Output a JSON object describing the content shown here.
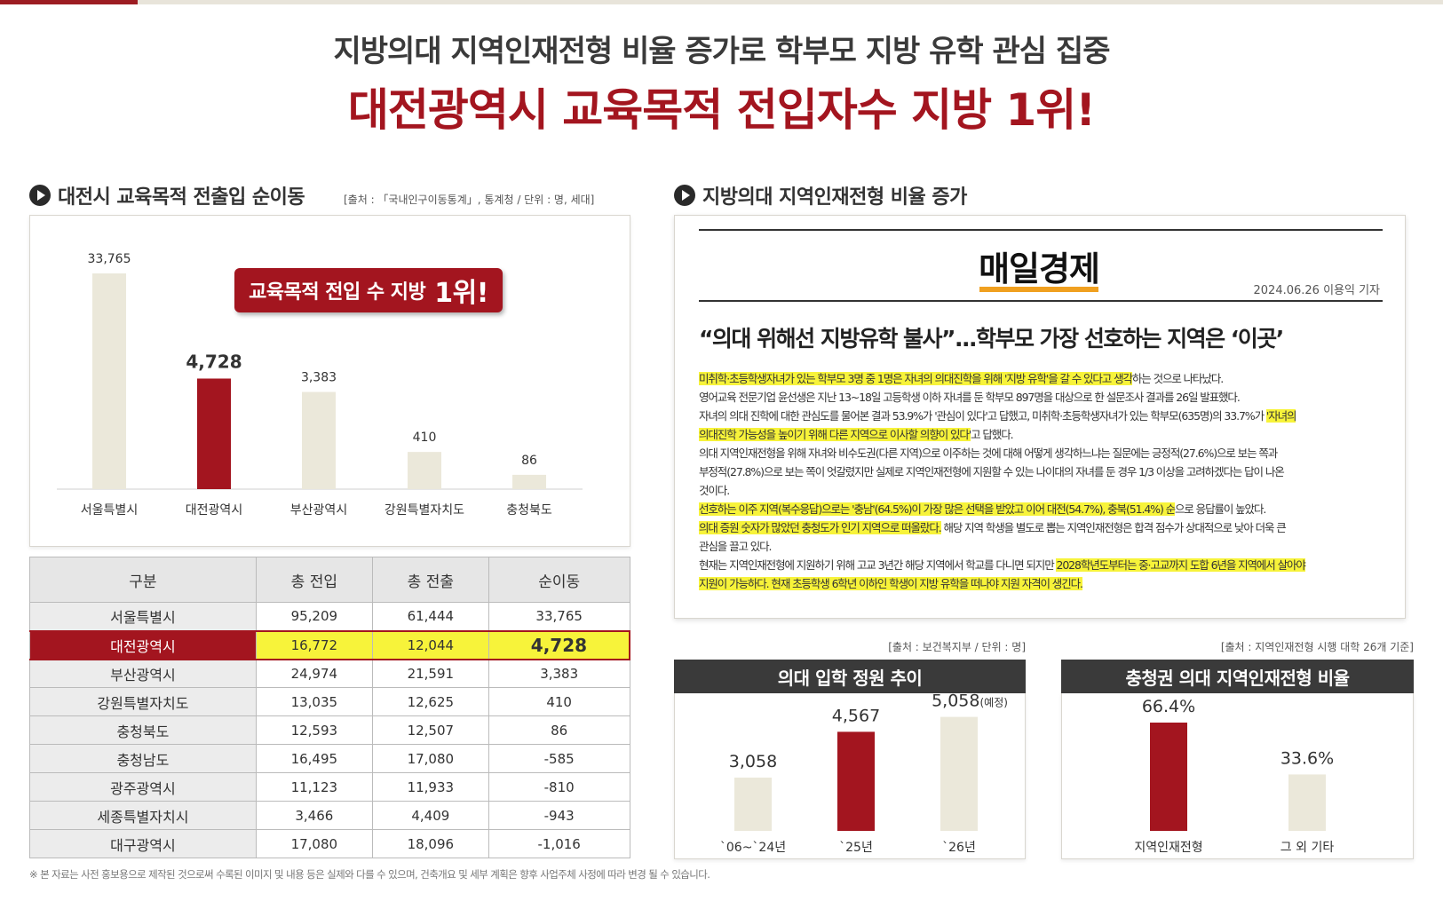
{
  "header": {
    "headline": "지방의대 지역인재전형 비율 증가로 학부모 지방 유학 관심 집중",
    "subheadline": "대전광역시 교육목적 전입자수 지방 1위!"
  },
  "left_section": {
    "title": "대전시 교육목적 전출입 순이동",
    "source": "[출처 : 「국내인구이동통계」, 통계청 / 단위 : 명, 세대]",
    "badge_text": "교육목적 전입 수 지방",
    "badge_rank": "1위!"
  },
  "right_section": {
    "title": "지방의대 지역인재전형 비율 증가"
  },
  "news": {
    "logo": "매일경제",
    "date_reporter": "2024.06.26 이용익 기자",
    "headline": "“의대 위해선 지방유학 불사”...학부모 가장 선호하는 지역은 ‘이곳’",
    "lines": [
      {
        "segments": [
          {
            "t": "미취학·초등학생자녀가 있는 학부모 3명 중 1명은 자녀의 의대진학을 위해 '지방 유학'을 갈 수 있다고 생각",
            "hl": true
          },
          {
            "t": "하는 것으로 나타났다.",
            "hl": false
          }
        ]
      },
      {
        "segments": [
          {
            "t": "영어교육 전문기업 윤선생은 지난 13~18일 고등학생 이하 자녀를 둔 학부모 897명을 대상으로 한 설문조사 결과를 26일 발표했다.",
            "hl": false
          }
        ]
      },
      {
        "segments": [
          {
            "t": "자녀의 의대 진학에 대한 관심도를 물어본 결과 53.9%가 '관심이 있다'고 답했고, 미취학·초등학생자녀가 있는 학부모(635명)의 33.7%가 ",
            "hl": false
          },
          {
            "t": "'자녀의",
            "hl": true
          }
        ]
      },
      {
        "segments": [
          {
            "t": "의대진학 가능성을 높이기 위해 다른 지역으로 이사할 의향이 있다'",
            "hl": true
          },
          {
            "t": "고 답했다.",
            "hl": false
          }
        ]
      },
      {
        "segments": [
          {
            "t": "의대 지역인재전형을 위해 자녀와 비수도권(다른 지역)으로 이주하는 것에 대해 어떻게 생각하느냐는 질문에는 긍정적(27.6%)으로 보는 쪽과",
            "hl": false
          }
        ]
      },
      {
        "segments": [
          {
            "t": "부정적(27.8%)으로 보는 쪽이 엇갈렸지만 실제로 지역인재전형에 지원할 수 있는 나이대의 자녀를 둔 경우 1/3 이상을 고려하겠다는 답이 나온",
            "hl": false
          }
        ]
      },
      {
        "segments": [
          {
            "t": "것이다.",
            "hl": false
          }
        ]
      },
      {
        "segments": [
          {
            "t": "선호하는 이주 지역(복수응답)으로는 '충남'(64.5%)이 가장 많은 선택을 받았고 이어 대전(54.7%), 충북(51.4%) 순",
            "hl": true
          },
          {
            "t": "으로 응답률이 높았다.",
            "hl": false
          }
        ]
      },
      {
        "segments": [
          {
            "t": "의대 증원 숫자가 많았던 충청도가 인기 지역으로 떠올랐다.",
            "hl": true
          },
          {
            "t": " 해당 지역 학생을 별도로 뽑는 지역인재전형은 합격 점수가 상대적으로 낮아 더욱 큰",
            "hl": false
          }
        ]
      },
      {
        "segments": [
          {
            "t": "관심을 끌고 있다.",
            "hl": false
          }
        ]
      },
      {
        "segments": [
          {
            "t": "현재는 지역인재전형에 지원하기 위해 고교 3년간 해당 지역에서 학교를 다니면 되지만 ",
            "hl": false
          },
          {
            "t": "2028학년도부터는 중·고교까지 도합 6년을 지역에서 살아야",
            "hl": true
          }
        ]
      },
      {
        "segments": [
          {
            "t": "지원이 가능하다. 현재 초등학생 6학년 이하인 학생이 지방 유학을 떠나야 지원 자격이 생긴다.",
            "hl": true
          }
        ]
      }
    ]
  },
  "quota_panel": {
    "source": "[출처 : 보건복지부 / 단위 : 명]",
    "title": "의대 입학 정원 추이"
  },
  "ratio_panel": {
    "source": "[출처 : 지역인재전형 시행 대학 26개 기준]",
    "title": "충청권 의대 지역인재전형 비율"
  },
  "table": {
    "headers": [
      "구분",
      "총 전입",
      "총 전출",
      "순이동"
    ],
    "rows": [
      [
        "서울특별시",
        "95,209",
        "61,444",
        "33,765"
      ],
      [
        "대전광역시",
        "16,772",
        "12,044",
        "4,728"
      ],
      [
        "부산광역시",
        "24,974",
        "21,591",
        "3,383"
      ],
      [
        "강원특별자치도",
        "13,035",
        "12,625",
        "410"
      ],
      [
        "충청북도",
        "12,593",
        "12,507",
        "86"
      ],
      [
        "충청남도",
        "16,495",
        "17,080",
        "-585"
      ],
      [
        "광주광역시",
        "11,123",
        "11,933",
        "-810"
      ],
      [
        "세종특별자치시",
        "3,466",
        "4,409",
        "-943"
      ],
      [
        "대구광역시",
        "17,080",
        "18,096",
        "-1,016"
      ]
    ],
    "highlight_row": 1
  },
  "footnote": "※ 본 자료는 사전 홍보용으로 제작된 것으로써 수록된 이미지 및 내용 등은 실제와 다를 수 있으며, 건축개요 및 세부 계획은 향후 사업주체 사정에 따라 변경 될 수 있습니다.",
  "colors": {
    "accent": "#a3151f",
    "neutral_bar": "#ebe8da",
    "dark_panel": "#3a3a3a",
    "highlight": "#f7f33a"
  },
  "chart_data": [
    {
      "type": "bar",
      "title": "대전시 교육목적 전출입 순이동",
      "categories": [
        "서울특별시",
        "대전광역시",
        "부산광역시",
        "강원특별자치도",
        "충청북도"
      ],
      "values": [
        33765,
        4728,
        3383,
        410,
        86
      ],
      "labels": [
        "33,765",
        "4,728",
        "3,383",
        "410",
        "86"
      ],
      "highlight_index": 1,
      "note": "axis broken; bars not to linear scale"
    },
    {
      "type": "bar",
      "title": "의대 입학 정원 추이",
      "categories": [
        "`06~`24년",
        "`25년",
        "`26년"
      ],
      "values": [
        3058,
        4567,
        5058
      ],
      "labels": [
        "3,058",
        "4,567",
        "5,058"
      ],
      "label_suffix": [
        "",
        "",
        "(예정)"
      ],
      "highlight_index": 1
    },
    {
      "type": "bar",
      "title": "충청권 의대 지역인재전형 비율",
      "categories": [
        "지역인재전형",
        "그 외 기타"
      ],
      "values": [
        66.4,
        33.6
      ],
      "labels": [
        "66.4%",
        "33.6%"
      ],
      "highlight_index": 0
    }
  ]
}
